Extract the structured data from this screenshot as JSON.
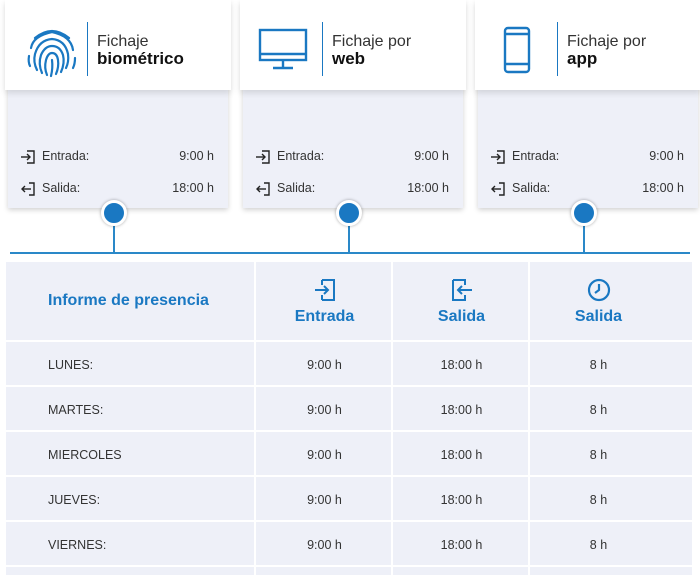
{
  "cards": [
    {
      "icon": "fingerprint-icon",
      "title_line1": "Fichaje",
      "title_line2": "biométrico",
      "entry_label": "Entrada:",
      "entry_time": "9:00 h",
      "exit_label": "Salida:",
      "exit_time": "18:00 h"
    },
    {
      "icon": "monitor-icon",
      "title_line1": "Fichaje por",
      "title_line2": "web",
      "entry_label": "Entrada:",
      "entry_time": "9:00 h",
      "exit_label": "Salida:",
      "exit_time": "18:00 h"
    },
    {
      "icon": "smartphone-icon",
      "title_line1": "Fichaje por",
      "title_line2": "app",
      "entry_label": "Entrada:",
      "entry_time": "9:00 h",
      "exit_label": "Salida:",
      "exit_time": "18:00 h"
    }
  ],
  "report": {
    "title": "Informe de presencia",
    "columns": [
      {
        "label": "Entrada",
        "icon": "login-icon"
      },
      {
        "label": "Salida",
        "icon": "logout-icon"
      },
      {
        "label": "Salida",
        "icon": "clock-icon"
      }
    ],
    "rows": [
      {
        "day": "LUNES:",
        "entrada": "9:00 h",
        "salida": "18:00 h",
        "horas": "8 h"
      },
      {
        "day": "MARTES:",
        "entrada": "9:00 h",
        "salida": "18:00 h",
        "horas": "8 h"
      },
      {
        "day": "MIERCOLES",
        "entrada": "9:00 h",
        "salida": "18:00 h",
        "horas": "8 h"
      },
      {
        "day": "JUEVES:",
        "entrada": "9:00 h",
        "salida": "18:00 h",
        "horas": "8 h"
      },
      {
        "day": "VIERNES:",
        "entrada": "9:00 h",
        "salida": "18:00 h",
        "horas": "8 h"
      }
    ]
  },
  "colors": {
    "accent": "#1a78c2",
    "panel": "#eef0f8",
    "line": "#2a88c8"
  }
}
